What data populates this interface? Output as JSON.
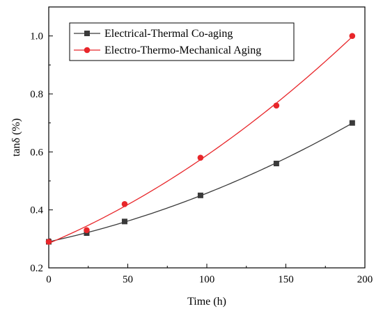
{
  "chart_data": {
    "type": "line",
    "xlabel": "Time (h)",
    "ylabel": "tanδ  (%)",
    "xlim": [
      0,
      200
    ],
    "ylim": [
      0.2,
      1.1
    ],
    "xticks": [
      0,
      50,
      100,
      150,
      200
    ],
    "yticks": [
      0.2,
      0.4,
      0.6,
      0.8,
      1.0
    ],
    "xtick_labels": [
      "0",
      "50",
      "100",
      "150",
      "200"
    ],
    "ytick_labels": [
      "0.2",
      "0.4",
      "0.6",
      "0.8",
      "1.0"
    ],
    "grid": false,
    "legend_position": "top-left",
    "series": [
      {
        "name": "Electrical-Thermal Co-aging",
        "marker": "square",
        "color": "#3a3a3a",
        "x": [
          0,
          24,
          48,
          96,
          144,
          192
        ],
        "y": [
          0.29,
          0.32,
          0.36,
          0.45,
          0.56,
          0.7
        ]
      },
      {
        "name": "Electro-Thermo-Mechanical Aging",
        "marker": "circle",
        "color": "#e8262a",
        "x": [
          0,
          24,
          48,
          96,
          144,
          192
        ],
        "y": [
          0.29,
          0.33,
          0.42,
          0.58,
          0.76,
          1.0
        ]
      }
    ]
  }
}
